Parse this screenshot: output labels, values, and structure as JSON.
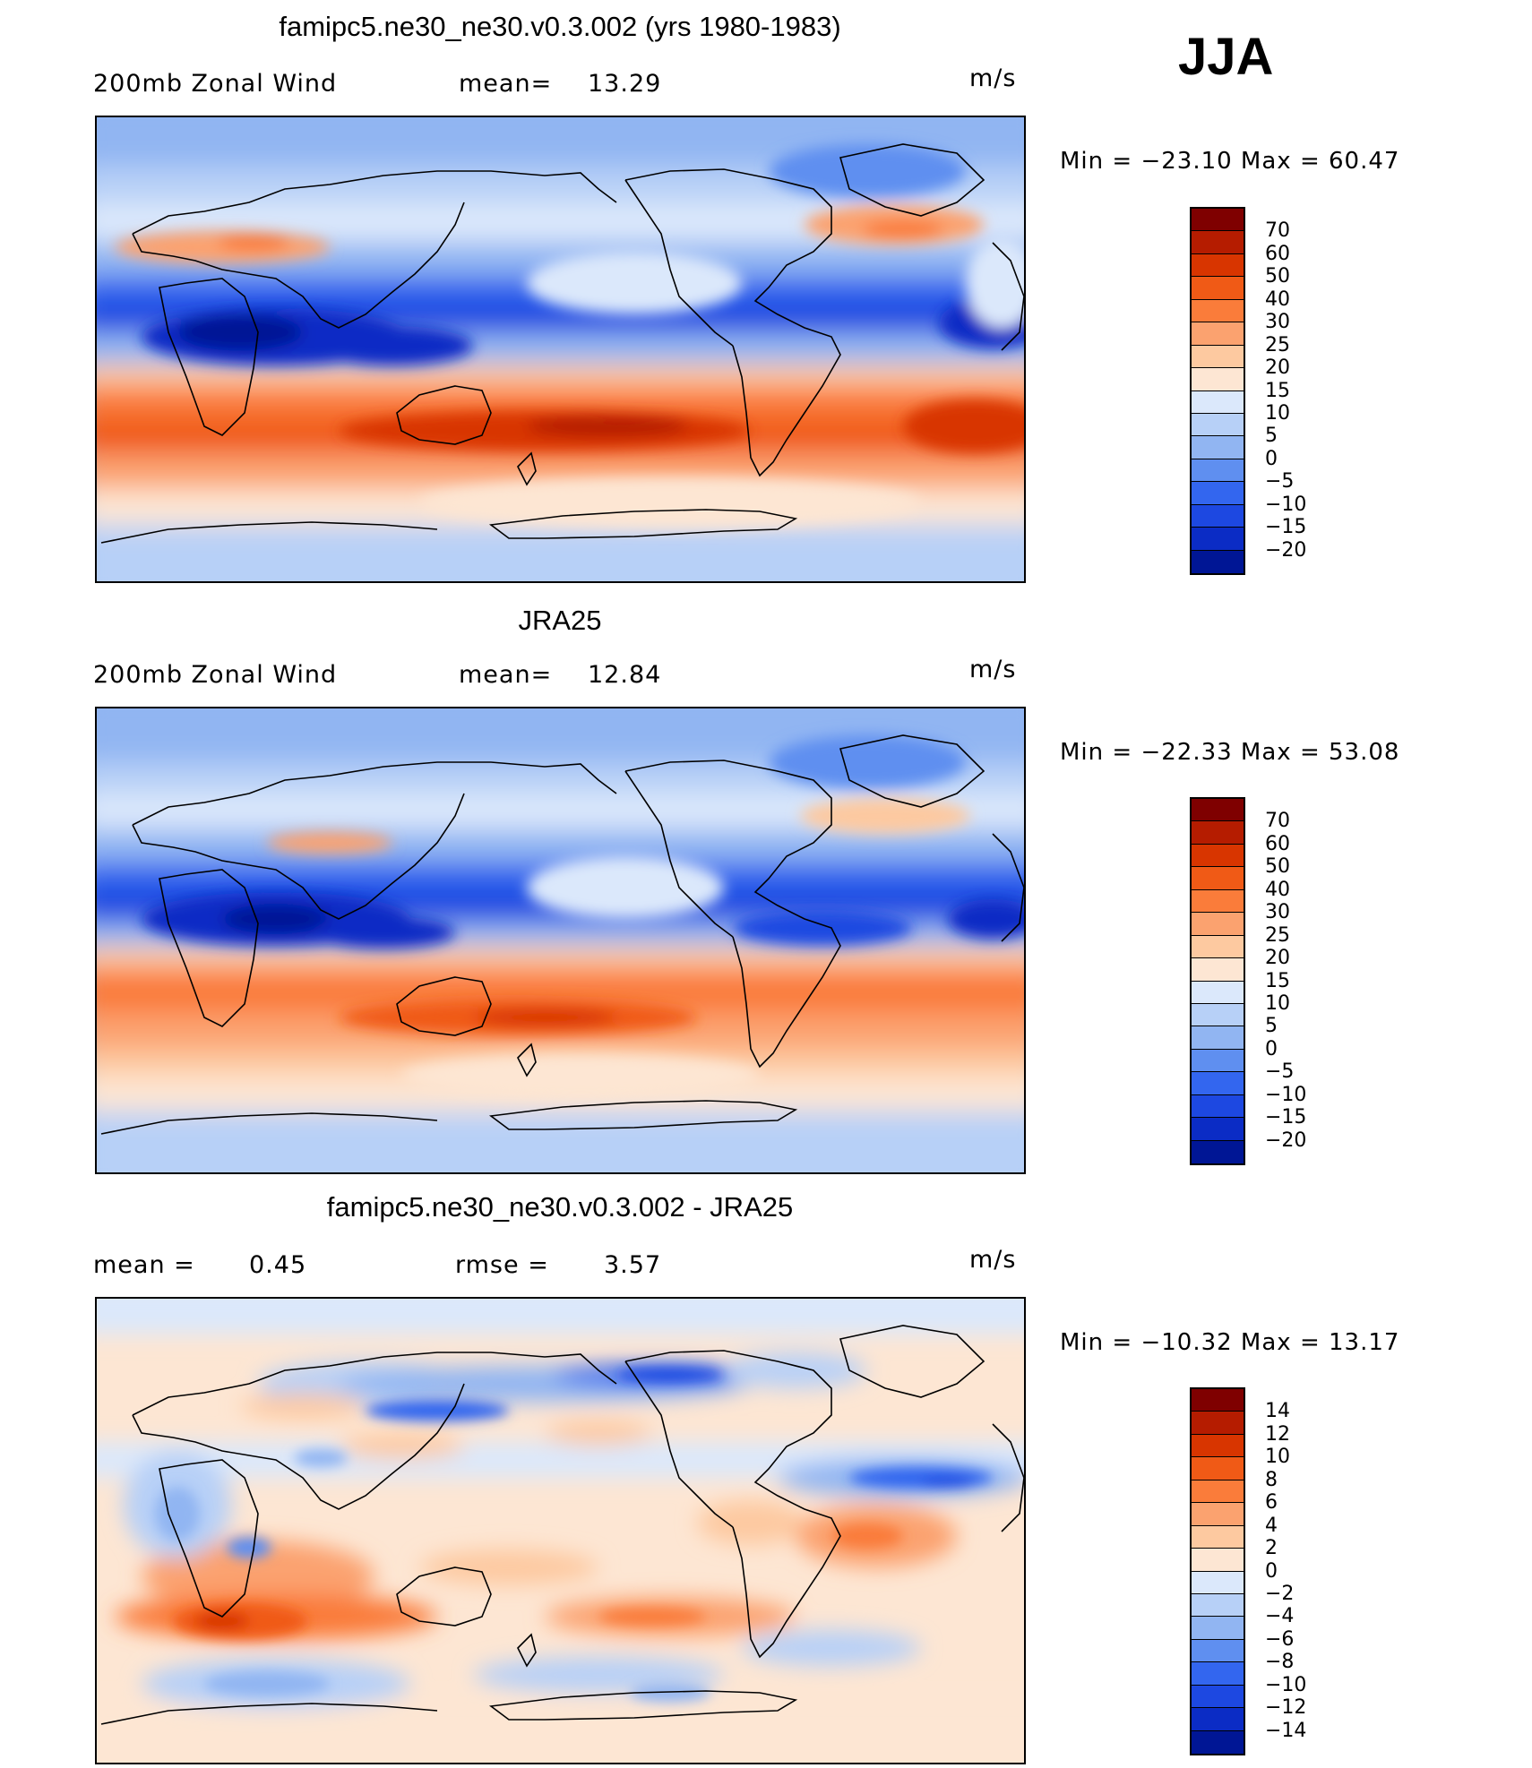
{
  "season": "JJA",
  "units": "m/s",
  "panels": [
    {
      "id": "model",
      "title": "famipc5.ne30_ne30.v0.3.002 (yrs 1980-1983)",
      "left_label": "200mb Zonal Wind",
      "mid_label": "mean=",
      "mid_value": "13.29",
      "right_label": "m/s",
      "minmax": "Min = −23.10 Max = 60.47",
      "cbar": {
        "colors": [
          "#7f0000",
          "#b51c00",
          "#d83500",
          "#f05a16",
          "#fa7c3a",
          "#fba26f",
          "#fdc9a0",
          "#fde6d3",
          "#dbe8fb",
          "#b7d0f7",
          "#91b5f2",
          "#5f8ff0",
          "#3366ef",
          "#1d48e1",
          "#0b2cc5",
          "#001695"
        ],
        "labels": [
          "70",
          "60",
          "50",
          "40",
          "30",
          "25",
          "20",
          "15",
          "10",
          "5",
          "0",
          "−5",
          "−10",
          "−15",
          "−20"
        ]
      }
    },
    {
      "id": "obs",
      "title": "JRA25",
      "left_label": "200mb Zonal Wind",
      "mid_label": "mean=",
      "mid_value": "12.84",
      "right_label": "m/s",
      "minmax": "Min = −22.33 Max = 53.08",
      "cbar": {
        "colors": [
          "#7f0000",
          "#b51c00",
          "#d83500",
          "#f05a16",
          "#fa7c3a",
          "#fba26f",
          "#fdc9a0",
          "#fde6d3",
          "#dbe8fb",
          "#b7d0f7",
          "#91b5f2",
          "#5f8ff0",
          "#3366ef",
          "#1d48e1",
          "#0b2cc5",
          "#001695"
        ],
        "labels": [
          "70",
          "60",
          "50",
          "40",
          "30",
          "25",
          "20",
          "15",
          "10",
          "5",
          "0",
          "−5",
          "−10",
          "−15",
          "−20"
        ]
      }
    },
    {
      "id": "diff",
      "title": "famipc5.ne30_ne30.v0.3.002 - JRA25",
      "left_label": "mean =",
      "left_value": "0.45",
      "mid_label": "rmse =",
      "mid_value": "3.57",
      "right_label": "m/s",
      "minmax": "Min = −10.32 Max = 13.17",
      "cbar": {
        "colors": [
          "#7f0000",
          "#b51c00",
          "#d83500",
          "#f05a16",
          "#fa7c3a",
          "#fba26f",
          "#fdc9a0",
          "#fde6d3",
          "#dbe8fb",
          "#b7d0f7",
          "#91b5f2",
          "#5f8ff0",
          "#3366ef",
          "#1d48e1",
          "#0b2cc5",
          "#001695"
        ],
        "labels": [
          "14",
          "12",
          "10",
          "8",
          "6",
          "4",
          "2",
          "0",
          "−2",
          "−4",
          "−6",
          "−8",
          "−10",
          "−12",
          "−14"
        ]
      }
    }
  ]
}
